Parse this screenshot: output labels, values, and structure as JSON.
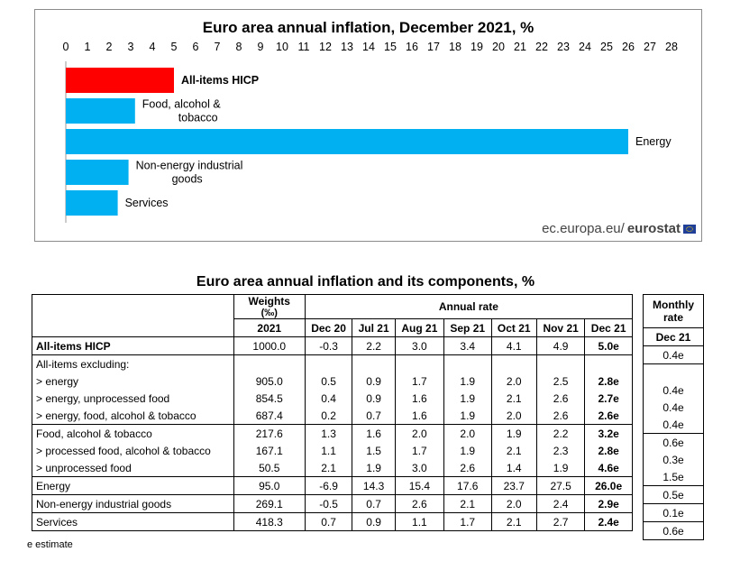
{
  "chart_data": {
    "type": "bar",
    "orientation": "horizontal",
    "title": "Euro area annual inflation, December 2021, %",
    "categories": [
      "All-items HICP",
      "Food, alcohol & tobacco",
      "Energy",
      "Non-energy industrial goods",
      "Services"
    ],
    "bar_labels": [
      [
        "All-items HICP"
      ],
      [
        "Food, alcohol &",
        "tobacco"
      ],
      [
        "Energy"
      ],
      [
        "Non-energy industrial",
        "goods"
      ],
      [
        "Services"
      ]
    ],
    "values": [
      5.0,
      3.2,
      26.0,
      2.9,
      2.4
    ],
    "highlight": "All-items HICP",
    "colors": {
      "highlight": "#ff0000",
      "default": "#00b0f0"
    },
    "xlim": [
      0,
      28
    ],
    "xticks": [
      "0",
      "1",
      "2",
      "3",
      "4",
      "5",
      "6",
      "7",
      "8",
      "9",
      "10",
      "11",
      "12",
      "13",
      "14",
      "15",
      "16",
      "17",
      "18",
      "19",
      "20",
      "21",
      "22",
      "23",
      "24",
      "25",
      "26",
      "27",
      "28"
    ],
    "source_prefix": "ec.europa.eu/",
    "source_brand": "eurostat"
  },
  "table": {
    "title": "Euro area annual inflation and its components, %",
    "weights_header": "Weights",
    "weights_unit": "(‰)",
    "annual_rate_header": "Annual rate",
    "monthly_header_line1": "Monthly",
    "monthly_header_line2": "rate",
    "weights_year": "2021",
    "months": [
      "Dec 20",
      "Jul 21",
      "Aug 21",
      "Sep 21",
      "Oct 21",
      "Nov 21",
      "Dec 21"
    ],
    "monthly_month": "Dec 21",
    "rows": [
      {
        "label": "All-items HICP",
        "weight": "1000.0",
        "values": [
          "-0.3",
          "2.2",
          "3.0",
          "3.4",
          "4.1",
          "4.9",
          "5.0e"
        ],
        "monthly": "0.4e",
        "bold_label": true
      },
      {
        "label": "All-items excluding:",
        "weight": "",
        "values": [
          "",
          "",
          "",
          "",
          "",
          "",
          ""
        ],
        "monthly": ""
      },
      {
        "label": "> energy",
        "weight": "905.0",
        "values": [
          "0.5",
          "0.9",
          "1.7",
          "1.9",
          "2.0",
          "2.5",
          "2.8e"
        ],
        "monthly": "0.4e"
      },
      {
        "label": "> energy, unprocessed food",
        "weight": "854.5",
        "values": [
          "0.4",
          "0.9",
          "1.6",
          "1.9",
          "2.1",
          "2.6",
          "2.7e"
        ],
        "monthly": "0.4e"
      },
      {
        "label": "> energy, food, alcohol & tobacco",
        "weight": "687.4",
        "values": [
          "0.2",
          "0.7",
          "1.6",
          "1.9",
          "2.0",
          "2.6",
          "2.6e"
        ],
        "monthly": "0.4e"
      },
      {
        "label": "Food, alcohol & tobacco",
        "weight": "217.6",
        "values": [
          "1.3",
          "1.6",
          "2.0",
          "2.0",
          "1.9",
          "2.2",
          "3.2e"
        ],
        "monthly": "0.6e"
      },
      {
        "label": "> processed food, alcohol & tobacco",
        "weight": "167.1",
        "values": [
          "1.1",
          "1.5",
          "1.7",
          "1.9",
          "2.1",
          "2.3",
          "2.8e"
        ],
        "monthly": "0.3e"
      },
      {
        "label": "> unprocessed food",
        "weight": "50.5",
        "values": [
          "2.1",
          "1.9",
          "3.0",
          "2.6",
          "1.4",
          "1.9",
          "4.6e"
        ],
        "monthly": "1.5e"
      },
      {
        "label": "Energy",
        "weight": "95.0",
        "values": [
          "-6.9",
          "14.3",
          "15.4",
          "17.6",
          "23.7",
          "27.5",
          "26.0e"
        ],
        "monthly": "0.5e"
      },
      {
        "label": "Non-energy industrial goods",
        "weight": "269.1",
        "values": [
          "-0.5",
          "0.7",
          "2.6",
          "2.1",
          "2.0",
          "2.4",
          "2.9e"
        ],
        "monthly": "0.1e"
      },
      {
        "label": "Services",
        "weight": "418.3",
        "values": [
          "0.7",
          "0.9",
          "1.1",
          "1.7",
          "2.1",
          "2.7",
          "2.4e"
        ],
        "monthly": "0.6e"
      }
    ],
    "footnote": "e estimate"
  }
}
